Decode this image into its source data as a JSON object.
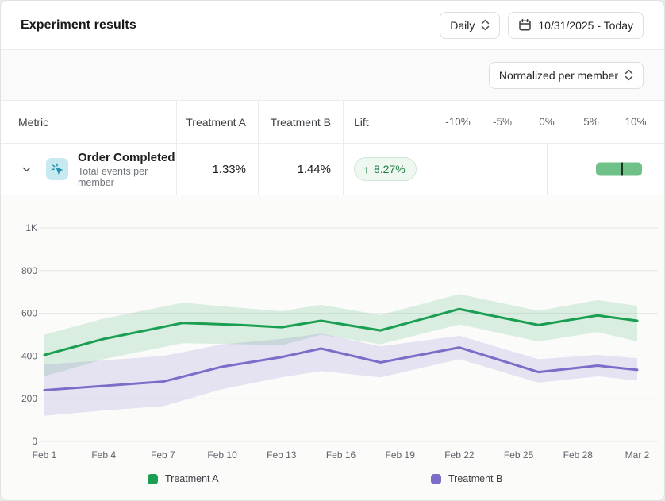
{
  "header": {
    "title": "Experiment results",
    "granularity_label": "Daily",
    "date_range_label": "10/31/2025 - Today"
  },
  "toolbar": {
    "normalization_label": "Normalized per member"
  },
  "table": {
    "columns": {
      "metric": "Metric",
      "treatment_a": "Treatment A",
      "treatment_b": "Treatment B",
      "lift": "Lift"
    },
    "scale_ticks": [
      "-10%",
      "-5%",
      "0%",
      "5%",
      "10%"
    ],
    "rows": [
      {
        "metric_name": "Order Completed",
        "metric_subtitle": "Total events per member",
        "metric_icon": "tap-event-icon",
        "treatment_a_value": "1.33%",
        "treatment_b_value": "1.44%",
        "lift_arrow": "↑",
        "lift_label": "8.27%",
        "lift_direction": "up",
        "lift_mean_pct": 8.27,
        "lift_ci_pct": [
          5.4,
          10.5
        ]
      }
    ]
  },
  "chart_data": {
    "type": "line",
    "title": "",
    "xlabel": "",
    "ylabel": "Total events per member",
    "x_domain": [
      0,
      30
    ],
    "y_domain": [
      0,
      1000
    ],
    "grid": "horizontal",
    "x_ticks": [
      {
        "day": 0,
        "label": "Feb 1"
      },
      {
        "day": 3,
        "label": "Feb 4"
      },
      {
        "day": 6,
        "label": "Feb 7"
      },
      {
        "day": 9,
        "label": "Feb 10"
      },
      {
        "day": 12,
        "label": "Feb 13"
      },
      {
        "day": 15,
        "label": "Feb 16"
      },
      {
        "day": 18,
        "label": "Feb 19"
      },
      {
        "day": 21,
        "label": "Feb 22"
      },
      {
        "day": 24,
        "label": "Feb 25"
      },
      {
        "day": 27,
        "label": "Feb 28"
      },
      {
        "day": 30,
        "label": "Mar 2"
      }
    ],
    "y_ticks": [
      {
        "value": 0,
        "label": "0"
      },
      {
        "value": 200,
        "label": "200"
      },
      {
        "value": 400,
        "label": "400"
      },
      {
        "value": 600,
        "label": "600"
      },
      {
        "value": 800,
        "label": "800"
      },
      {
        "value": 1000,
        "label": "1K"
      }
    ],
    "point_format": "[day, value, ci_low, ci_high]",
    "series": [
      {
        "name": "Treatment A",
        "color": "#1a9e51",
        "band_color": "rgba(26,158,81,0.15)",
        "points": [
          [
            0,
            405,
            305,
            500
          ],
          [
            3,
            480,
            385,
            575
          ],
          [
            7,
            555,
            460,
            650
          ],
          [
            10,
            545,
            455,
            625
          ],
          [
            12,
            535,
            450,
            610
          ],
          [
            14,
            565,
            500,
            640
          ],
          [
            17,
            520,
            455,
            592
          ],
          [
            21,
            620,
            548,
            690
          ],
          [
            25,
            545,
            468,
            612
          ],
          [
            28,
            590,
            512,
            662
          ],
          [
            30,
            565,
            468,
            635
          ]
        ]
      },
      {
        "name": "Treatment B",
        "color": "#7b6dc8",
        "band_color": "rgba(123,109,200,0.17)",
        "points": [
          [
            0,
            240,
            120,
            360
          ],
          [
            3,
            260,
            145,
            380
          ],
          [
            6,
            280,
            165,
            400
          ],
          [
            9,
            350,
            245,
            455
          ],
          [
            12,
            395,
            300,
            480
          ],
          [
            14,
            435,
            330,
            505
          ],
          [
            17,
            370,
            300,
            445
          ],
          [
            21,
            440,
            385,
            495
          ],
          [
            25,
            325,
            275,
            385
          ],
          [
            28,
            355,
            305,
            405
          ],
          [
            30,
            335,
            285,
            390
          ]
        ]
      }
    ],
    "legend": [
      {
        "label": "Treatment A",
        "color": "#1a9e51"
      },
      {
        "label": "Treatment B",
        "color": "#7b6dc8"
      }
    ],
    "legend_position": "bottom"
  },
  "colors": {
    "accent_green": "#1a9e51",
    "accent_purple": "#7b6dc8",
    "lift_bar_fill": "#70c189",
    "lift_bar_marker": "#17351f",
    "badge_bg": "#eef8f1",
    "badge_border": "#cfe8d7",
    "badge_text": "#1e7e45",
    "metric_icon_bg": "#c7e9f1",
    "metric_icon_glyph": "#2391aa"
  }
}
